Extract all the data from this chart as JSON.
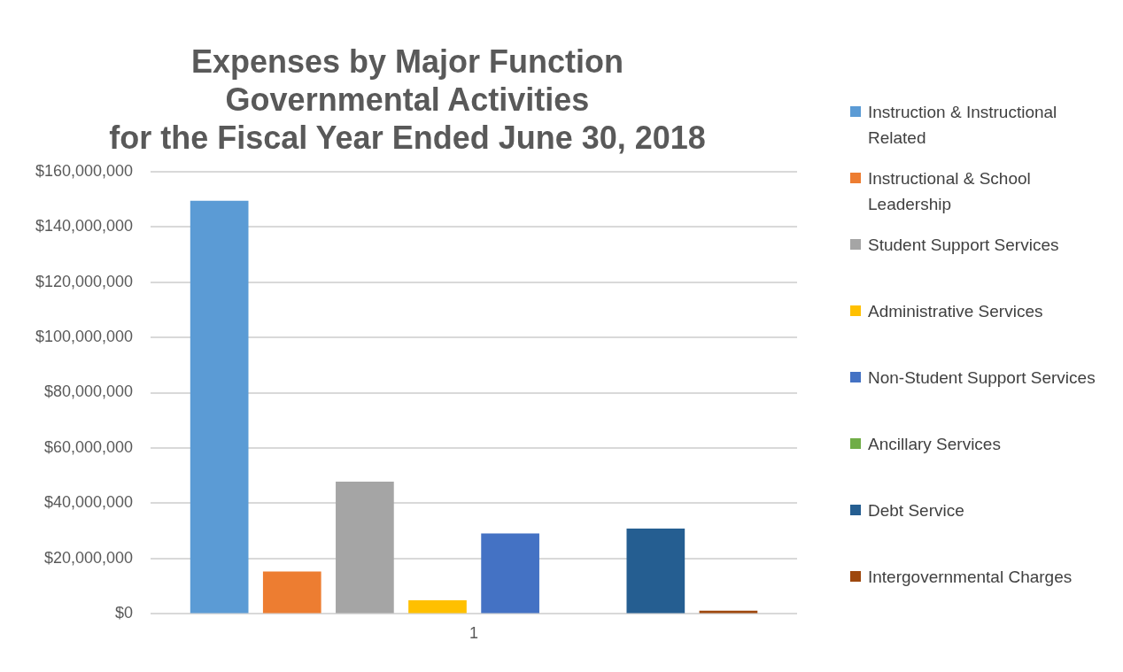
{
  "chart_data": {
    "type": "bar",
    "title": "Expenses by Major Function\nGovernmental Activities\nfor the Fiscal Year Ended June 30, 2018",
    "categories": [
      "1"
    ],
    "series": [
      {
        "name": "Instruction & Instructional Related",
        "color": "#5b9bd5",
        "values": [
          149400000
        ]
      },
      {
        "name": "Instructional & School Leadership",
        "color": "#ed7d31",
        "values": [
          15300000
        ]
      },
      {
        "name": "Student Support Services",
        "color": "#a5a5a5",
        "values": [
          47800000
        ]
      },
      {
        "name": "Administrative Services",
        "color": "#ffc000",
        "values": [
          4900000
        ]
      },
      {
        "name": "Non-Student Support Services",
        "color": "#4472c4",
        "values": [
          29100000
        ]
      },
      {
        "name": "Ancillary Services",
        "color": "#70ad47",
        "values": [
          0
        ]
      },
      {
        "name": "Debt Service",
        "color": "#255e91",
        "values": [
          30900000
        ]
      },
      {
        "name": "Intergovernmental Charges",
        "color": "#9e480e",
        "values": [
          1200000
        ]
      }
    ],
    "ylim": [
      0,
      160000000
    ],
    "yticks": [
      {
        "value": 0,
        "label": "$0"
      },
      {
        "value": 20000000,
        "label": "$20,000,000"
      },
      {
        "value": 40000000,
        "label": "$40,000,000"
      },
      {
        "value": 60000000,
        "label": "$60,000,000"
      },
      {
        "value": 80000000,
        "label": "$80,000,000"
      },
      {
        "value": 100000000,
        "label": "$100,000,000"
      },
      {
        "value": 120000000,
        "label": "$120,000,000"
      },
      {
        "value": 140000000,
        "label": "$140,000,000"
      },
      {
        "value": 160000000,
        "label": "$160,000,000"
      }
    ],
    "grid": "y",
    "legend": "right"
  }
}
